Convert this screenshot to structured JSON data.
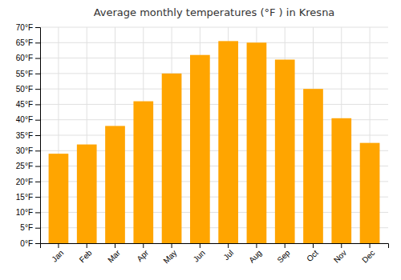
{
  "chart_data": {
    "type": "bar",
    "title": "Average monthly temperatures (°F ) in Kresna",
    "categories": [
      "Jan",
      "Feb",
      "Mar",
      "Apr",
      "May",
      "Jun",
      "Jul",
      "Aug",
      "Sep",
      "Oct",
      "Nov",
      "Dec"
    ],
    "values": [
      29,
      32,
      38,
      46,
      55,
      61,
      65.5,
      65,
      59.5,
      50,
      40.5,
      32.5
    ],
    "color": "#FFA500",
    "ylim": [
      0,
      70
    ],
    "yticks": [
      {
        "value": 0,
        "label": "0°F"
      },
      {
        "value": 5,
        "label": "5°F"
      },
      {
        "value": 10,
        "label": "10°F"
      },
      {
        "value": 15,
        "label": "15°F"
      },
      {
        "value": 20,
        "label": "20°F"
      },
      {
        "value": 25,
        "label": "25°F"
      },
      {
        "value": 30,
        "label": "30°F"
      },
      {
        "value": 35,
        "label": "35°F"
      },
      {
        "value": 40,
        "label": "40°F"
      },
      {
        "value": 45,
        "label": "45°F"
      },
      {
        "value": 50,
        "label": "50°F"
      },
      {
        "value": 55,
        "label": "55°F"
      },
      {
        "value": 60,
        "label": "60°F"
      },
      {
        "value": 65,
        "label": "65°F"
      },
      {
        "value": 70,
        "label": "70°F"
      }
    ],
    "grid": true
  }
}
